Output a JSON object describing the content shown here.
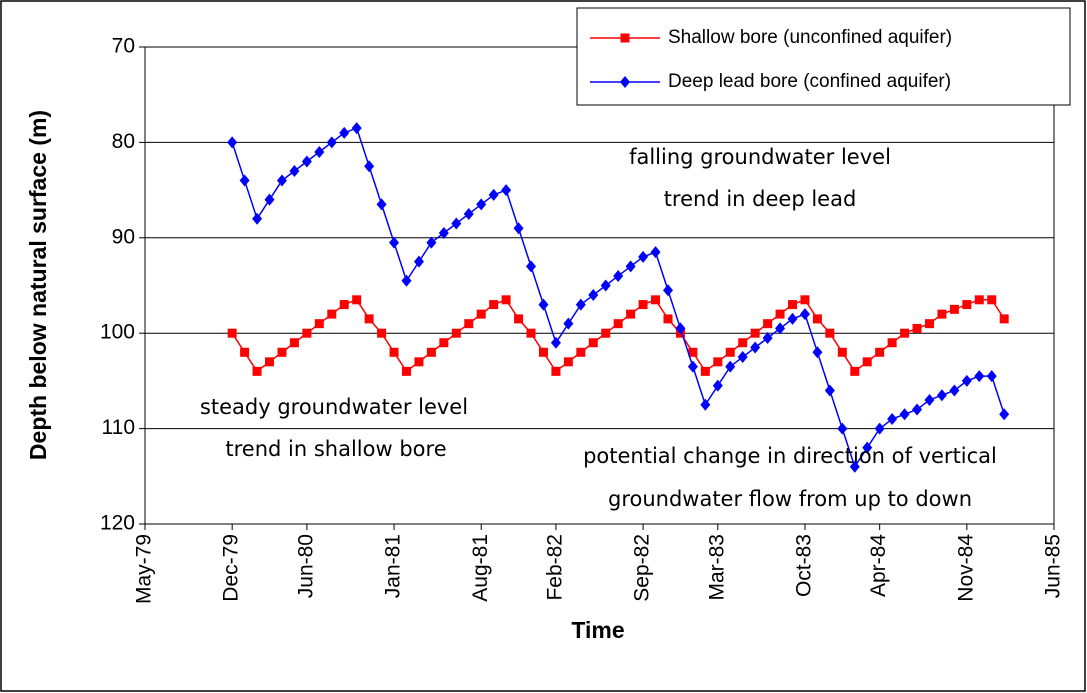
{
  "chart_data": {
    "type": "line",
    "y_label": "Depth below natural surface (m)",
    "x_label": "Time",
    "ylim": [
      70,
      120
    ],
    "y_reversed": true,
    "yticks": [
      70,
      80,
      90,
      100,
      110,
      120
    ],
    "grid": true,
    "xlim": [
      "1979-05",
      "1985-06"
    ],
    "xticks": [
      {
        "value": "1979-05",
        "label": "May-79"
      },
      {
        "value": "1979-12",
        "label": "Dec-79"
      },
      {
        "value": "1980-06",
        "label": "Jun-80"
      },
      {
        "value": "1981-01",
        "label": "Jan-81"
      },
      {
        "value": "1981-08",
        "label": "Aug-81"
      },
      {
        "value": "1982-02",
        "label": "Feb-82"
      },
      {
        "value": "1982-09",
        "label": "Sep-82"
      },
      {
        "value": "1983-03",
        "label": "Mar-83"
      },
      {
        "value": "1983-10",
        "label": "Oct-83"
      },
      {
        "value": "1984-04",
        "label": "Apr-84"
      },
      {
        "value": "1984-11",
        "label": "Nov-84"
      },
      {
        "value": "1985-06",
        "label": "Jun-85"
      }
    ],
    "legend": "top-right",
    "x": [
      "1979-12",
      "1980-01",
      "1980-02",
      "1980-03",
      "1980-04",
      "1980-05",
      "1980-06",
      "1980-07",
      "1980-08",
      "1980-09",
      "1980-10",
      "1980-11",
      "1980-12",
      "1981-01",
      "1981-02",
      "1981-03",
      "1981-04",
      "1981-05",
      "1981-06",
      "1981-07",
      "1981-08",
      "1981-09",
      "1981-10",
      "1981-11",
      "1981-12",
      "1982-01",
      "1982-02",
      "1982-03",
      "1982-04",
      "1982-05",
      "1982-06",
      "1982-07",
      "1982-08",
      "1982-09",
      "1982-10",
      "1982-11",
      "1982-12",
      "1983-01",
      "1983-02",
      "1983-03",
      "1983-04",
      "1983-05",
      "1983-06",
      "1983-07",
      "1983-08",
      "1983-09",
      "1983-10",
      "1983-11",
      "1983-12",
      "1984-01",
      "1984-02",
      "1984-03",
      "1984-04",
      "1984-05",
      "1984-06",
      "1984-07",
      "1984-08",
      "1984-09",
      "1984-10",
      "1984-11",
      "1984-12",
      "1985-01",
      "1985-02"
    ],
    "series": [
      {
        "name": "Shallow bore (unconfined aquifer)",
        "color": "#ff0000",
        "marker": "square",
        "values": [
          100,
          102,
          104,
          103,
          102,
          101,
          100,
          99,
          98,
          97,
          96.5,
          98.5,
          100,
          102,
          104,
          103,
          102,
          101,
          100,
          99,
          98,
          97,
          96.5,
          98.5,
          100,
          102,
          104,
          103,
          102,
          101,
          100,
          99,
          98,
          97,
          96.5,
          98.5,
          100,
          102,
          104,
          103,
          102,
          101,
          100,
          99,
          98,
          97,
          96.5,
          98.5,
          100,
          102,
          104,
          103,
          102,
          101,
          100,
          99.5,
          99,
          98,
          97.5,
          97,
          96.5,
          96.5,
          98.5
        ]
      },
      {
        "name": "Deep lead bore (confined aquifer)",
        "color": "#0000ff",
        "marker": "diamond",
        "values": [
          80,
          84,
          88,
          86,
          84,
          83,
          82,
          81,
          80,
          79,
          78.5,
          82.5,
          86.5,
          90.5,
          94.5,
          92.5,
          90.5,
          89.5,
          88.5,
          87.5,
          86.5,
          85.5,
          85,
          89,
          93,
          97,
          101,
          99,
          97,
          96,
          95,
          94,
          93,
          92,
          91.5,
          95.5,
          99.5,
          103.5,
          107.5,
          105.5,
          103.5,
          102.5,
          101.5,
          100.5,
          99.5,
          98.5,
          98,
          102,
          106,
          110,
          114,
          112,
          110,
          109,
          108.5,
          108,
          107,
          106.5,
          106,
          105,
          104.5,
          104.5,
          108.5
        ]
      }
    ],
    "annotations": [
      "falling groundwater level",
      "trend in deep lead",
      "steady groundwater level",
      "trend in shallow bore",
      "potential change in direction of vertical",
      "groundwater flow from up to down"
    ]
  }
}
